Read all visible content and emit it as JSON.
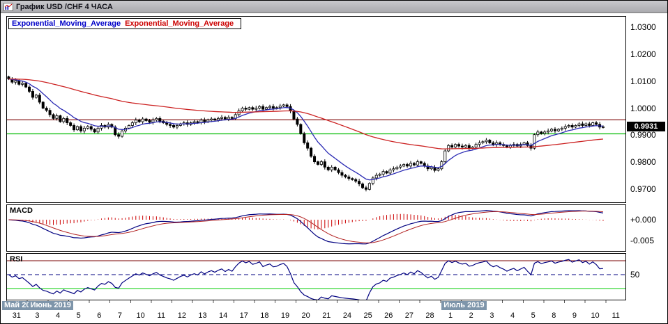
{
  "window": {
    "title": "График USD /CHF 4 ЧАСА"
  },
  "legend": {
    "items": [
      {
        "label": "Exponential_Moving_Average",
        "color": "#0000c8"
      },
      {
        "label": "Exponential_Moving_Average",
        "color": "#cc0000"
      }
    ]
  },
  "panels": {
    "macd_label": "MACD",
    "rsi_label": "RSI"
  },
  "axis": {
    "price_ticks": [
      {
        "label": "1.0300",
        "value": 1.03
      },
      {
        "label": "1.0200",
        "value": 1.02
      },
      {
        "label": "1.0100",
        "value": 1.01
      },
      {
        "label": "1.0000",
        "value": 1.0
      },
      {
        "label": "0.9900",
        "value": 0.99
      },
      {
        "label": "0.9800",
        "value": 0.98
      },
      {
        "label": "0.9700",
        "value": 0.97
      }
    ],
    "current_price_label": "0.9931",
    "macd_ticks": [
      {
        "label": "+0.000",
        "value": 0
      },
      {
        "label": "-0.005",
        "value": -0.005
      }
    ],
    "rsi_ticks": [
      {
        "label": "50",
        "value": 50
      }
    ],
    "months": [
      {
        "label": "Май 2019",
        "day_index": 0
      },
      {
        "label": "Июнь 2019",
        "day_index": 1
      },
      {
        "label": "Июль 2019",
        "day_index": 21
      }
    ],
    "days": [
      "31",
      "3",
      "4",
      "5",
      "6",
      "7",
      "10",
      "11",
      "12",
      "13",
      "14",
      "17",
      "18",
      "19",
      "20",
      "21",
      "24",
      "25",
      "26",
      "27",
      "28",
      "1",
      "2",
      "3",
      "4",
      "5",
      "8",
      "9",
      "10",
      "11"
    ]
  },
  "chart_data": [
    {
      "type": "candlestick",
      "symbol": "USD/CHF",
      "timeframe": "4 ЧАСА",
      "first_open": 1.0116,
      "candles_per_day": 6,
      "total_day_slots": 30,
      "ylim": [
        0.9652,
        1.0338
      ],
      "yticks": [
        1.03,
        1.02,
        1.01,
        1.0,
        0.99,
        0.98,
        0.97
      ],
      "last_price": 0.9931,
      "hlines": [
        {
          "value": 0.9957,
          "color": "#7a0000",
          "style": "solid"
        },
        {
          "value": 0.9905,
          "color": "#00bb00",
          "style": "solid"
        }
      ],
      "overlays": [
        {
          "name": "Exponential_Moving_Average",
          "period": 10,
          "color": "#2b2bb4"
        },
        {
          "name": "Exponential_Moving_Average",
          "period": 80,
          "color": "#cc2222"
        }
      ],
      "closes": [
        1.0108,
        1.0096,
        1.0102,
        1.0088,
        1.0092,
        1.0078,
        1.0062,
        1.004,
        1.0048,
        1.0022,
        1.0,
        0.9992,
        0.9976,
        0.9962,
        0.9972,
        0.995,
        0.9962,
        0.9946,
        0.9936,
        0.992,
        0.9932,
        0.9916,
        0.9926,
        0.9932,
        0.9922,
        0.9912,
        0.9926,
        0.9936,
        0.993,
        0.994,
        0.993,
        0.9902,
        0.9896,
        0.9916,
        0.9926,
        0.9936,
        0.9946,
        0.9956,
        0.995,
        0.996,
        0.9954,
        0.9948,
        0.9956,
        0.9962,
        0.9952,
        0.9946,
        0.994,
        0.9936,
        0.993,
        0.9936,
        0.9942,
        0.9946,
        0.994,
        0.9946,
        0.995,
        0.9946,
        0.9956,
        0.995,
        0.9956,
        0.996,
        0.9956,
        0.9962,
        0.9966,
        0.996,
        0.9966,
        0.9962,
        0.9976,
        0.999,
        1.0,
        0.9996,
        1.0002,
        0.9996,
        1.0,
        1.0006,
        0.9996,
        1.0002,
        1.0006,
        1.0,
        1.0002,
        1.0008,
        1.0012,
        1.0006,
        0.999,
        0.996,
        0.994,
        0.9906,
        0.9872,
        0.9852,
        0.9822,
        0.9802,
        0.9792,
        0.9802,
        0.9782,
        0.9772,
        0.9782,
        0.9772,
        0.9762,
        0.9752,
        0.9746,
        0.974,
        0.9736,
        0.973,
        0.972,
        0.9706,
        0.97,
        0.9722,
        0.9742,
        0.9752,
        0.9756,
        0.9766,
        0.976,
        0.9772,
        0.9776,
        0.9782,
        0.9786,
        0.9792,
        0.9786,
        0.9796,
        0.979,
        0.9802,
        0.9796,
        0.9786,
        0.9776,
        0.9782,
        0.977,
        0.9776,
        0.9802,
        0.9842,
        0.9862,
        0.9856,
        0.9866,
        0.986,
        0.9856,
        0.9862,
        0.9852,
        0.9856,
        0.9866,
        0.9872,
        0.9876,
        0.9882,
        0.9872,
        0.9866,
        0.9872,
        0.9866,
        0.9862,
        0.9856,
        0.9862,
        0.9866,
        0.986,
        0.9866,
        0.9872,
        0.9862,
        0.9852,
        0.9902,
        0.9912,
        0.9906,
        0.9912,
        0.9916,
        0.9922,
        0.9916,
        0.9922,
        0.9926,
        0.9932,
        0.9936,
        0.993,
        0.9936,
        0.9942,
        0.9936,
        0.9942,
        0.9936,
        0.9946,
        0.994,
        0.993,
        0.9931
      ]
    },
    {
      "type": "line",
      "title": "MACD",
      "params": {
        "fast": 12,
        "slow": 26,
        "signal": 9
      },
      "ylim": [
        -0.0075,
        0.0035
      ],
      "colors": {
        "macd": "#000080",
        "signal": "#b22222",
        "histogram": "#cc0000"
      }
    },
    {
      "type": "line",
      "title": "RSI",
      "params": {
        "period": 14
      },
      "ylim": [
        14,
        80
      ],
      "color": "#000080",
      "hlines": [
        {
          "value": 70,
          "color": "#7a0000",
          "style": "solid"
        },
        {
          "value": 50,
          "color": "#000080",
          "style": "dashed"
        },
        {
          "value": 30,
          "color": "#00cc00",
          "style": "solid"
        }
      ]
    }
  ]
}
